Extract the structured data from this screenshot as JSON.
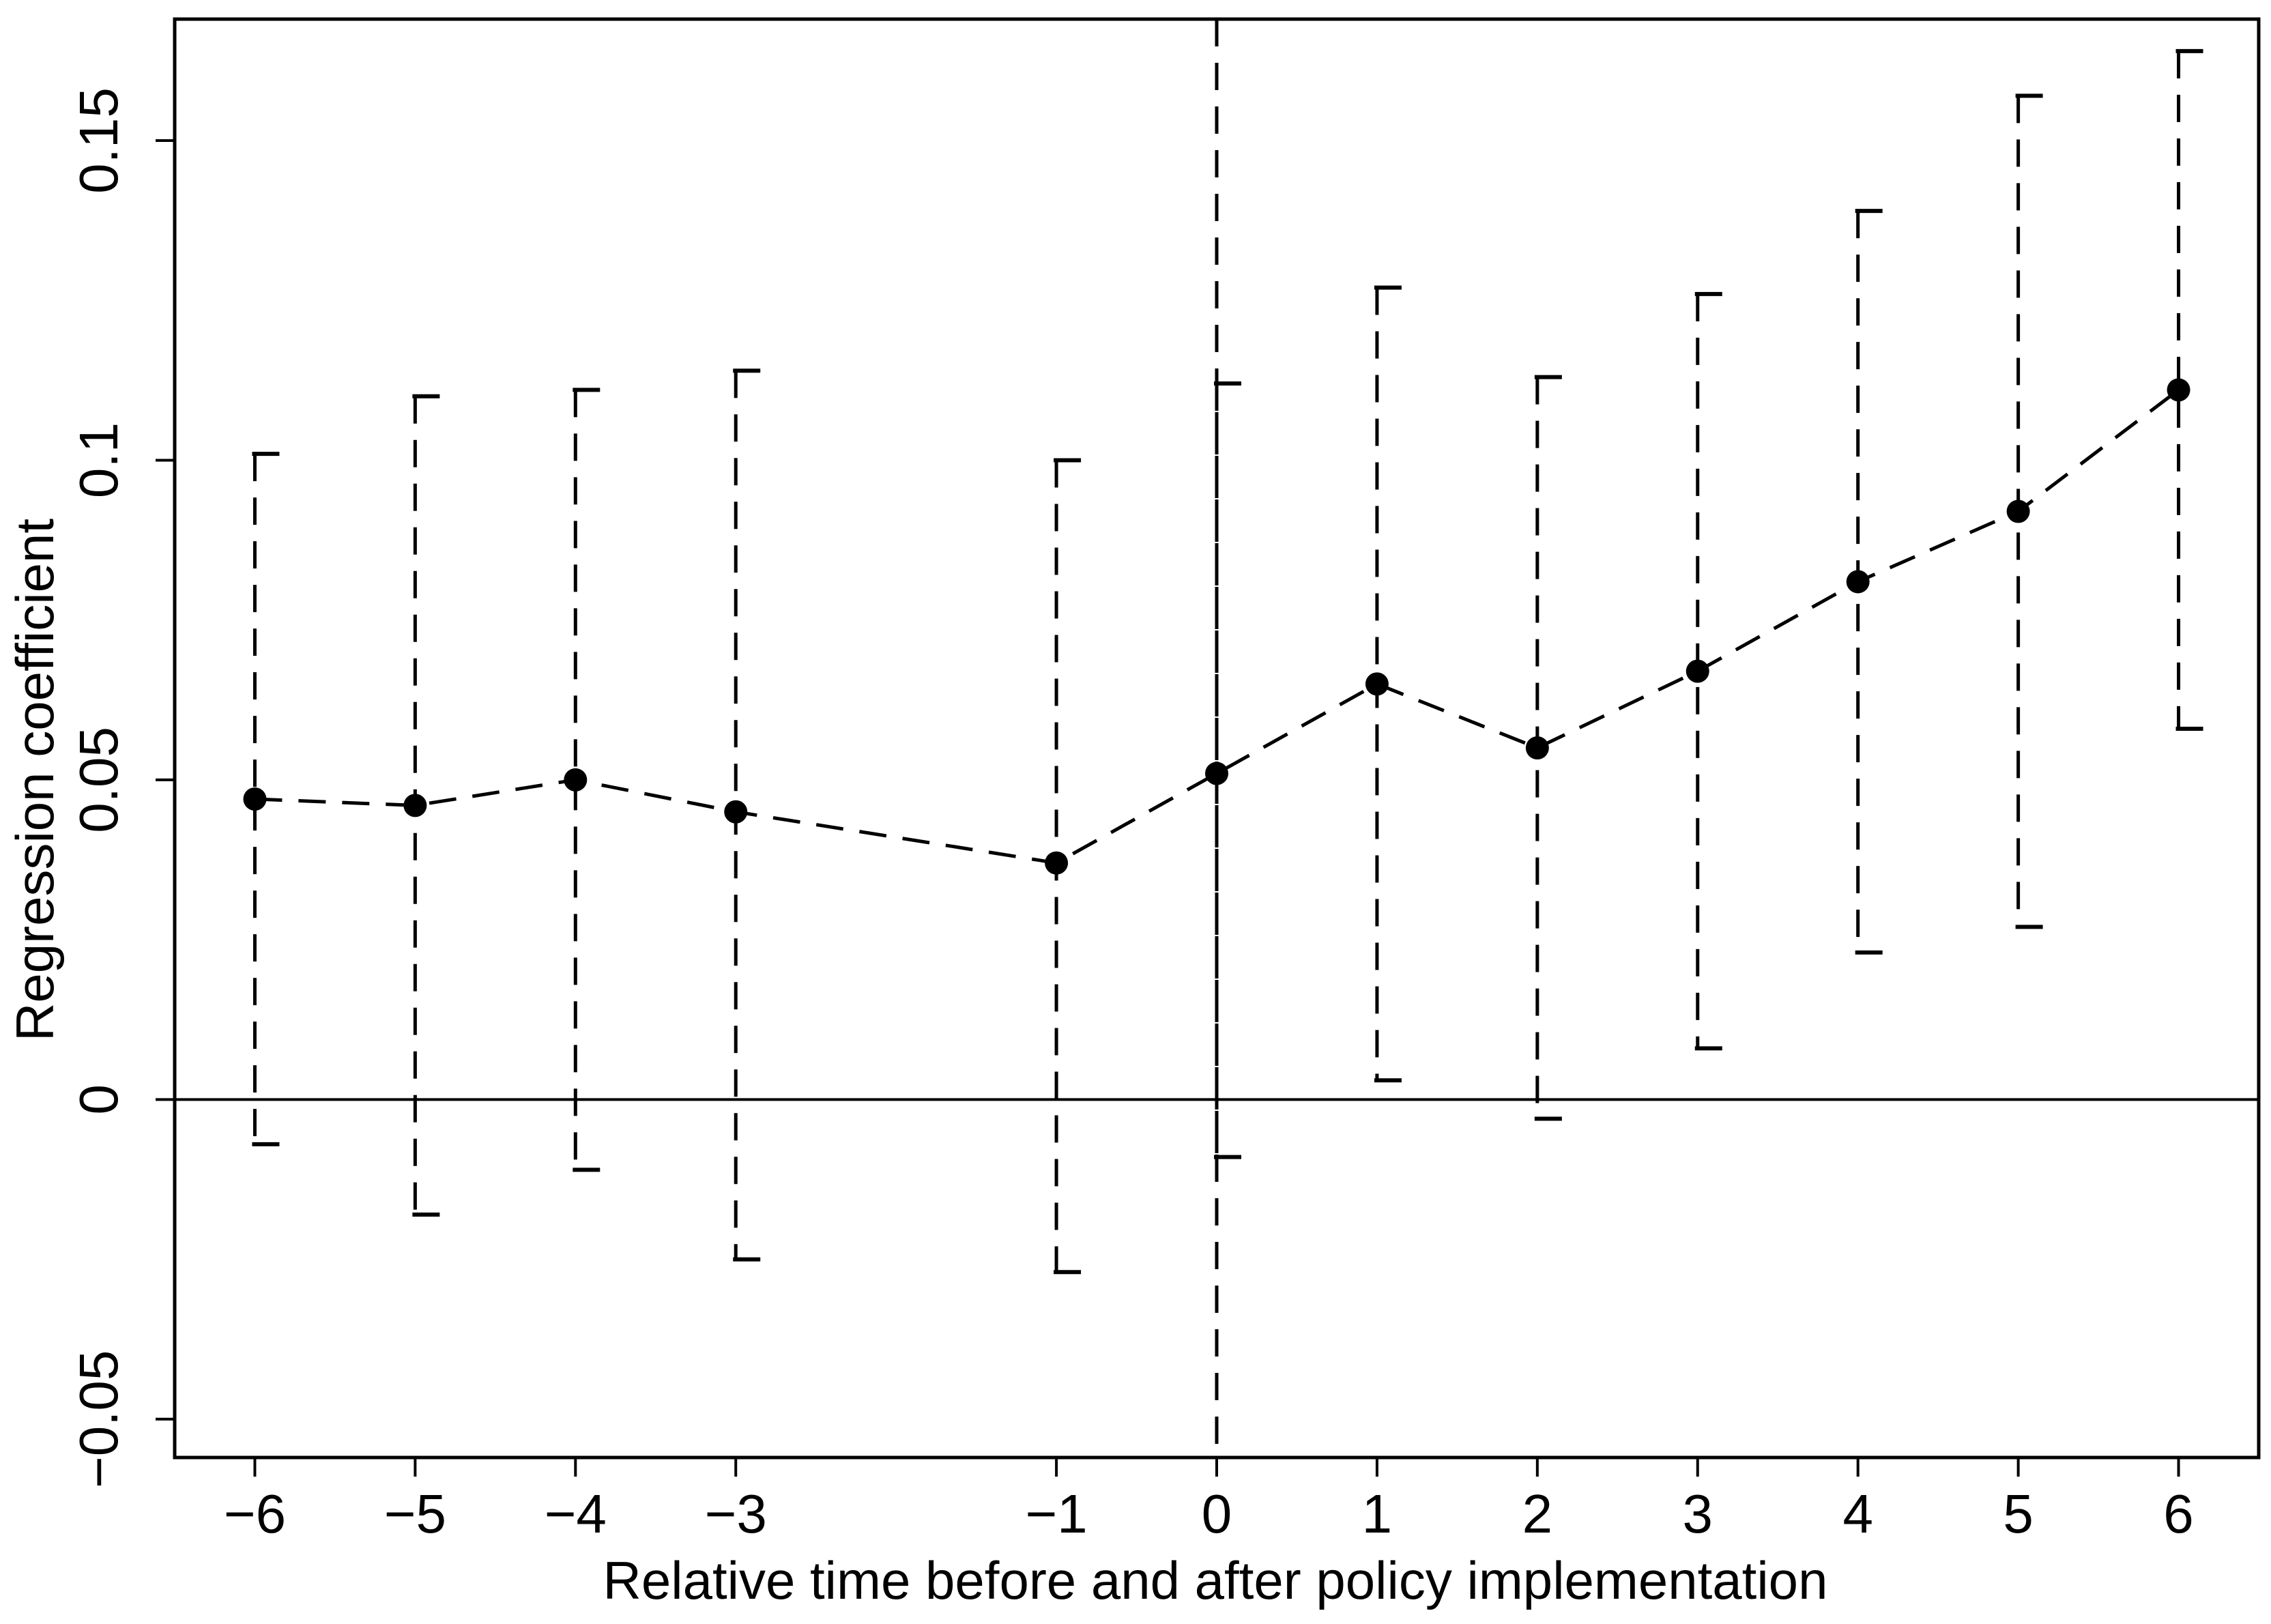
{
  "chart_data": {
    "type": "scatter",
    "title": "",
    "xlabel": "Relative time before and after policy implementation",
    "ylabel": "Regression coefficient",
    "xlim": [
      -6.5,
      6.5
    ],
    "ylim": [
      -0.056,
      0.169
    ],
    "x_ticks": [
      -6,
      -5,
      -4,
      -3,
      -1,
      0,
      1,
      2,
      3,
      4,
      5,
      6
    ],
    "x_tick_labels": [
      "−6",
      "−5",
      "−4",
      "−3",
      "−1",
      "0",
      "1",
      "2",
      "3",
      "4",
      "5",
      "6"
    ],
    "y_ticks": [
      -0.05,
      0,
      0.05,
      0.1,
      0.15
    ],
    "y_tick_labels": [
      "−0.05",
      "0",
      "0.05",
      "0.1",
      "0.15"
    ],
    "grid": false,
    "reference_lines": {
      "horizontal_y": 0,
      "vertical_x": 0
    },
    "series": [
      {
        "x": [
          -6,
          -5,
          -4,
          -3,
          -1,
          0,
          1,
          2,
          3,
          4,
          5,
          6
        ],
        "y": [
          0.047,
          0.046,
          0.05,
          0.045,
          0.037,
          0.051,
          0.065,
          0.055,
          0.067,
          0.081,
          0.092,
          0.111
        ],
        "ci_lower": [
          -0.007,
          -0.018,
          -0.011,
          -0.025,
          -0.027,
          -0.009,
          0.003,
          -0.003,
          0.008,
          0.023,
          0.027,
          0.058
        ],
        "ci_upper": [
          0.101,
          0.11,
          0.111,
          0.114,
          0.1,
          0.112,
          0.127,
          0.113,
          0.126,
          0.139,
          0.157,
          0.164
        ]
      }
    ]
  }
}
